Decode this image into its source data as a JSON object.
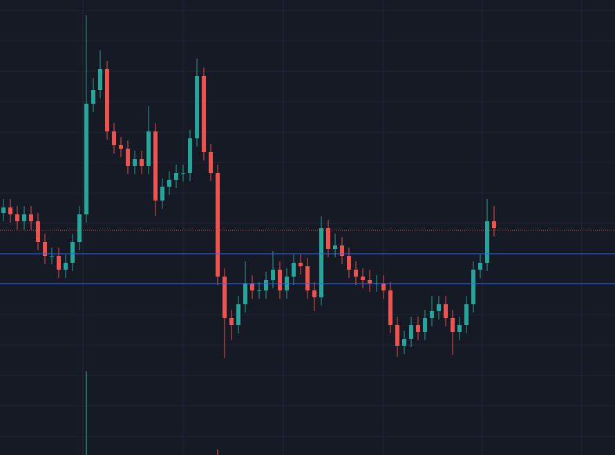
{
  "chart_data": {
    "type": "candlestick",
    "x": [
      5,
      15,
      25,
      35,
      45,
      55,
      65,
      75,
      85,
      95,
      105,
      115,
      125,
      135,
      145,
      155,
      165,
      175,
      185,
      195,
      205,
      215,
      225,
      235,
      245,
      255,
      265,
      275,
      285,
      295,
      305,
      315,
      325,
      335,
      345,
      355,
      365,
      375,
      385,
      395,
      405,
      415,
      425,
      435,
      445,
      455,
      465,
      475,
      485,
      495,
      505,
      515,
      525,
      535,
      545,
      555,
      565,
      575,
      585,
      595,
      605,
      615,
      625,
      635,
      645,
      655,
      665,
      675,
      685,
      695,
      705,
      715
    ],
    "open": [
      350,
      358,
      348,
      338,
      348,
      338,
      308,
      288,
      288,
      268,
      278,
      308,
      348,
      508,
      528,
      558,
      468,
      448,
      443,
      418,
      428,
      418,
      468,
      368,
      388,
      398,
      408,
      408,
      458,
      548,
      438,
      408,
      258,
      198,
      188,
      218,
      248,
      238,
      238,
      253,
      268,
      238,
      258,
      278,
      273,
      238,
      228,
      328,
      298,
      303,
      288,
      268,
      258,
      253,
      248,
      248,
      238,
      188,
      158,
      168,
      188,
      178,
      198,
      208,
      218,
      198,
      178,
      188,
      218,
      268,
      278,
      338
    ],
    "high": [
      370,
      370,
      360,
      360,
      360,
      350,
      320,
      300,
      300,
      290,
      320,
      360,
      636,
      545,
      585,
      570,
      480,
      460,
      455,
      440,
      440,
      505,
      480,
      400,
      410,
      420,
      420,
      470,
      573,
      560,
      450,
      420,
      270,
      210,
      230,
      280,
      260,
      250,
      265,
      295,
      280,
      270,
      290,
      290,
      285,
      250,
      345,
      340,
      320,
      315,
      300,
      280,
      270,
      268,
      260,
      260,
      250,
      200,
      180,
      200,
      200,
      210,
      230,
      230,
      230,
      210,
      200,
      230,
      280,
      290,
      370,
      360
    ],
    "low": [
      338,
      336,
      326,
      326,
      326,
      296,
      276,
      276,
      256,
      256,
      266,
      296,
      336,
      496,
      516,
      456,
      436,
      431,
      406,
      406,
      406,
      406,
      346,
      356,
      376,
      386,
      396,
      396,
      446,
      426,
      396,
      246,
      140,
      166,
      176,
      206,
      226,
      226,
      226,
      241,
      226,
      226,
      246,
      261,
      226,
      208,
      216,
      286,
      286,
      276,
      256,
      246,
      241,
      236,
      236,
      226,
      176,
      142,
      146,
      156,
      166,
      166,
      186,
      196,
      186,
      145,
      166,
      176,
      206,
      256,
      266,
      316
    ],
    "close": [
      358,
      348,
      338,
      348,
      338,
      308,
      288,
      288,
      268,
      278,
      308,
      348,
      508,
      528,
      558,
      468,
      448,
      443,
      418,
      428,
      418,
      468,
      368,
      388,
      398,
      408,
      408,
      458,
      548,
      438,
      408,
      258,
      198,
      188,
      218,
      248,
      238,
      238,
      253,
      268,
      238,
      258,
      278,
      273,
      238,
      228,
      328,
      298,
      303,
      288,
      268,
      258,
      253,
      248,
      248,
      238,
      188,
      158,
      168,
      188,
      178,
      198,
      208,
      218,
      198,
      178,
      188,
      218,
      268,
      278,
      338,
      328
    ],
    "volume": [
      0,
      0,
      0,
      0,
      0,
      0,
      0,
      0,
      0,
      0,
      0,
      0,
      121,
      0,
      0,
      0,
      0,
      0,
      0,
      0,
      0,
      0,
      0,
      0,
      0,
      0,
      0,
      0,
      0,
      0,
      0,
      8,
      0,
      0,
      0,
      0,
      0,
      0,
      0,
      0,
      0,
      0,
      0,
      0,
      0,
      0,
      0,
      0,
      0,
      0,
      0,
      0,
      0,
      0,
      0,
      0,
      0,
      0,
      0,
      0,
      0,
      0,
      0,
      0,
      0,
      0,
      0,
      0,
      0,
      0,
      0,
      0
    ],
    "up_color": "#26a69a",
    "down_color": "#ef5350",
    "xlim": [
      0,
      890
    ],
    "ylim": [
      0,
      658
    ],
    "xticks": [
      120,
      265,
      410,
      555,
      698,
      842
    ],
    "yticks": [
      27,
      71,
      115,
      159,
      203,
      247,
      291,
      335,
      379,
      423,
      467,
      511,
      555,
      599,
      643
    ],
    "grid": true,
    "hlines": [
      {
        "value": 291,
        "color": "#2962ff",
        "style": "solid"
      },
      {
        "value": 248,
        "color": "#2962ff",
        "style": "solid"
      },
      {
        "value": 325,
        "color": "#ef5350",
        "style": "dotted"
      }
    ]
  }
}
